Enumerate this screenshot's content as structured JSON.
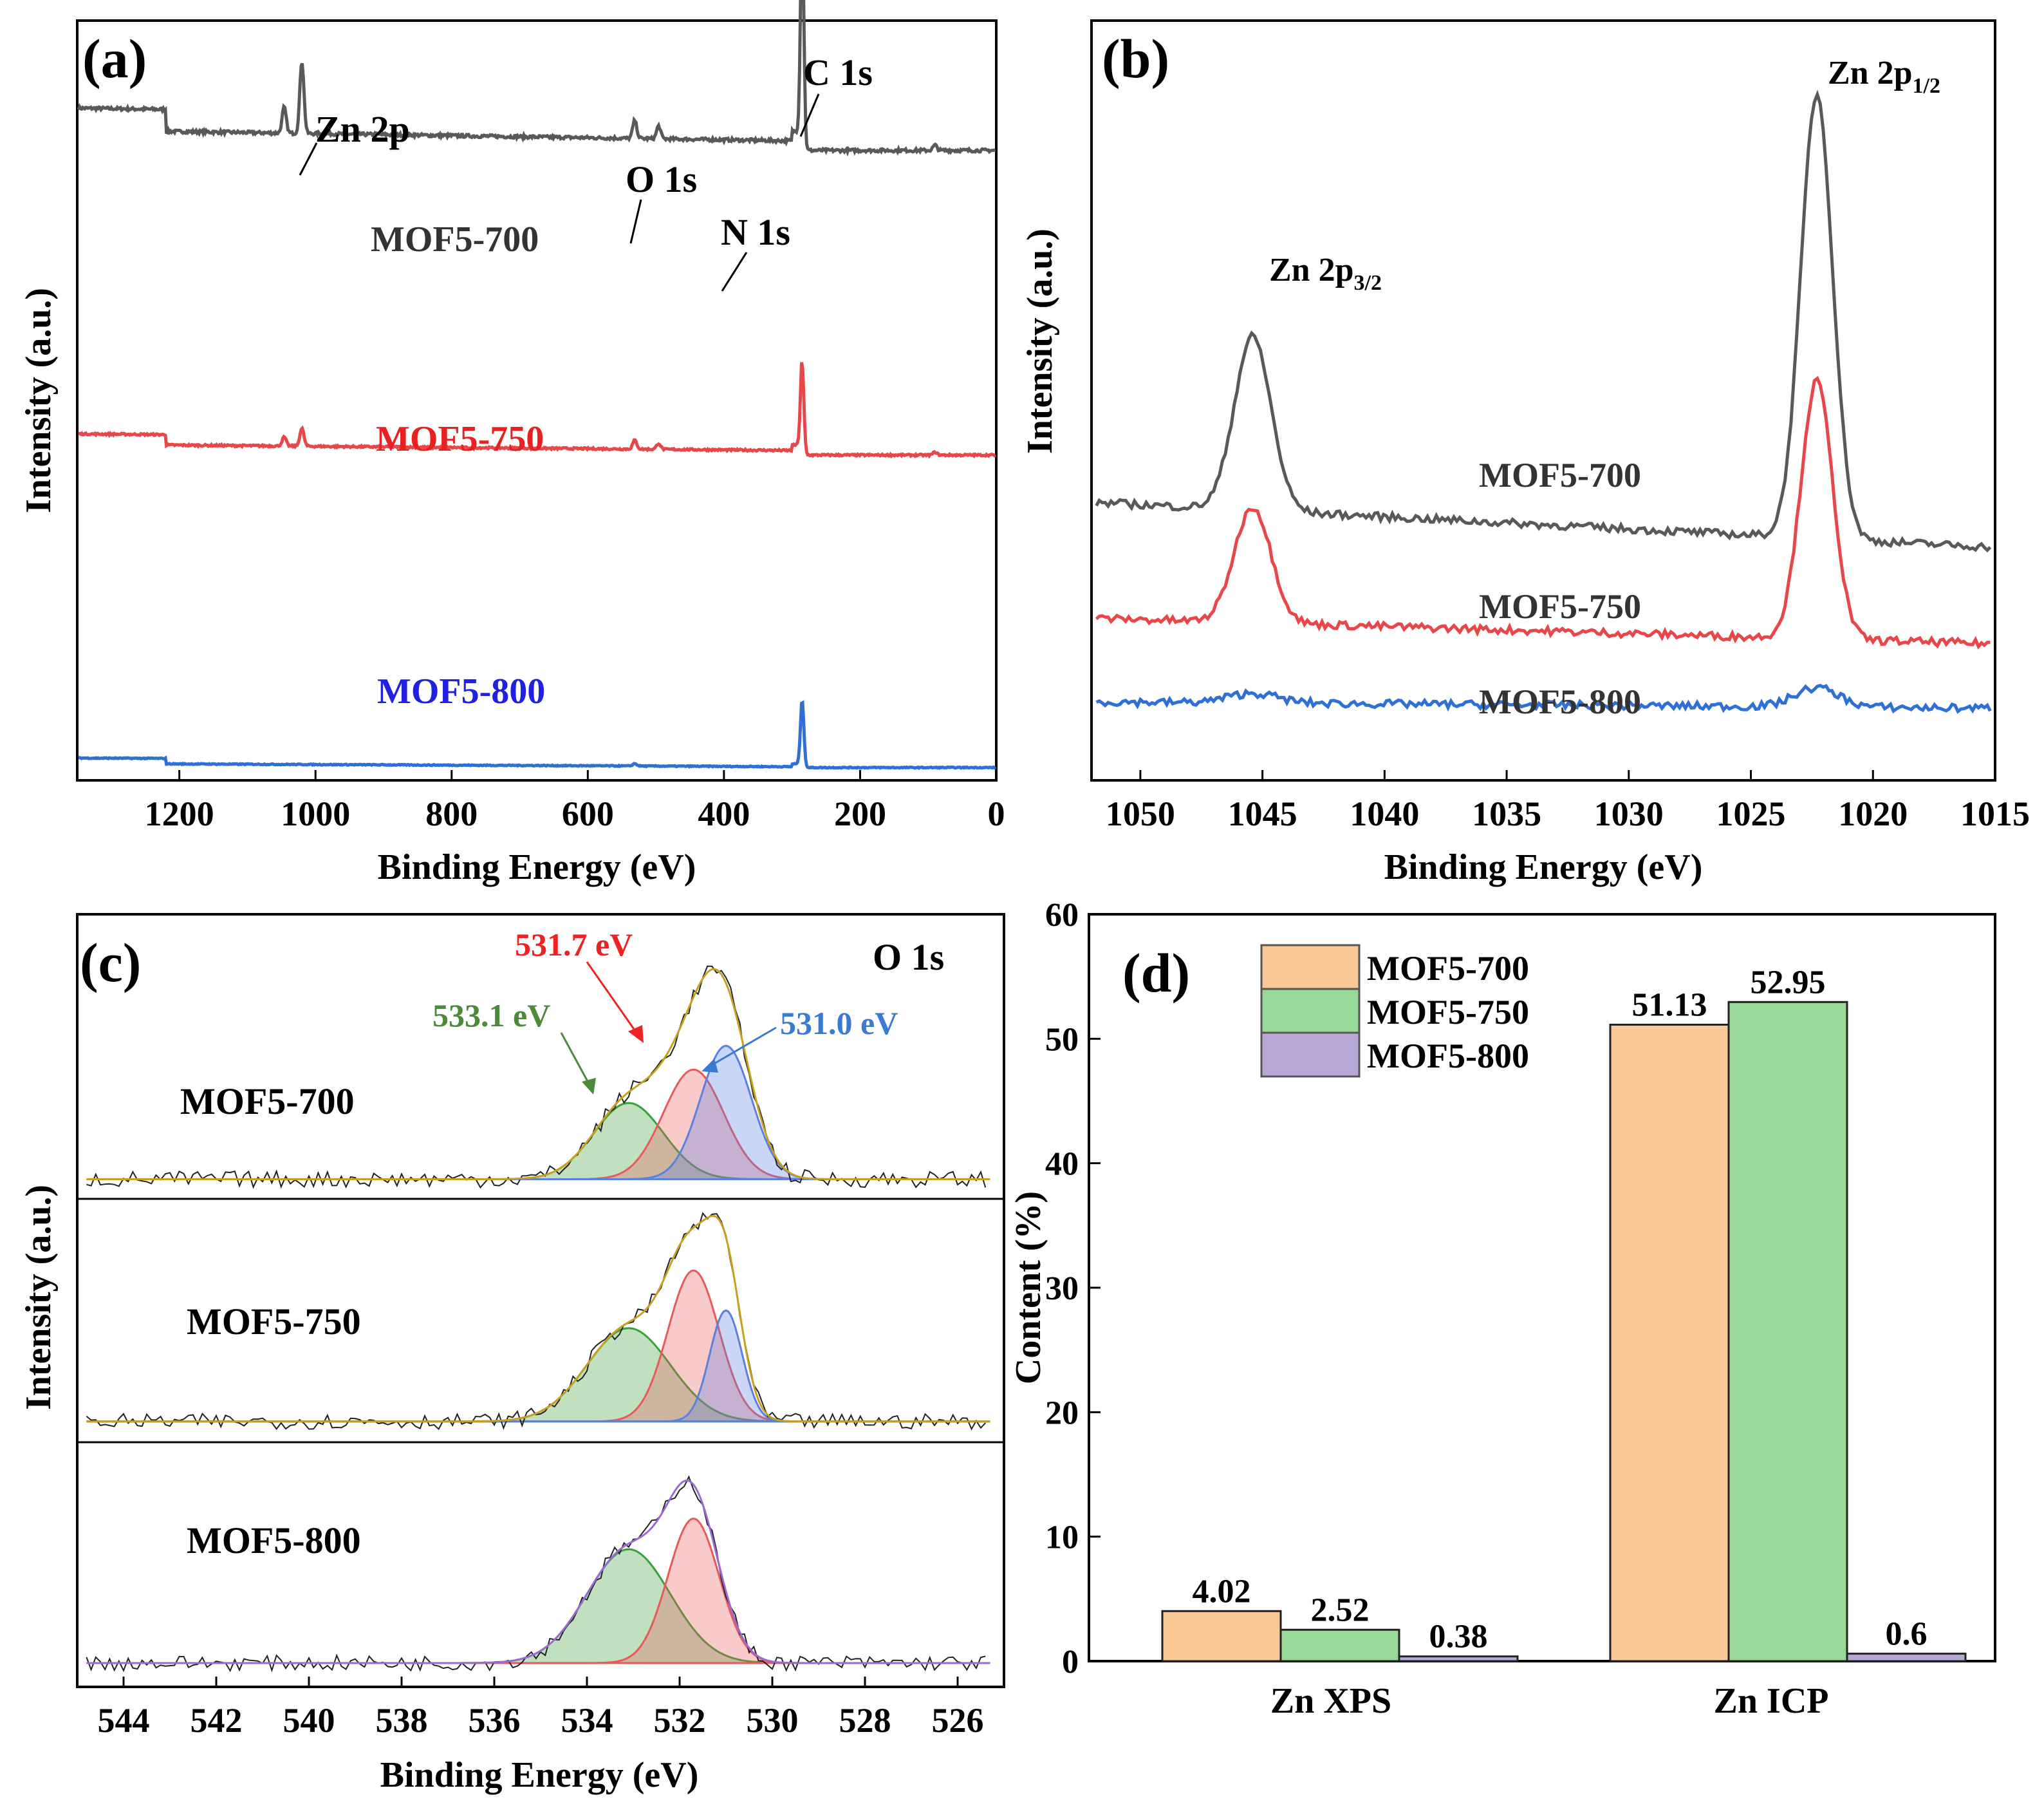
{
  "colors": {
    "mof700": "#595959",
    "mof750": "#e8474a",
    "mof800": "#2f6fd6",
    "bar700": "#f8c896",
    "bar750": "#98d898",
    "bar800": "#b8a8d8",
    "fit_green": "#3aa03a",
    "fit_red": "#e85a5a",
    "fit_blue": "#5a80e0",
    "envelope": "#c8a020",
    "ann_red": "#ee2222",
    "ann_green": "#4a8a3a",
    "ann_blue": "#3a7ad0"
  },
  "chart_data": [
    {
      "id": "a",
      "type": "line",
      "panel_label": "(a)",
      "xlabel": "Binding Energy (eV)",
      "ylabel": "Intensity (a.u.)",
      "xlim": [
        1350,
        0
      ],
      "xticks": [
        1200,
        1000,
        800,
        600,
        400,
        200,
        0
      ],
      "series": [
        {
          "name": "MOF5-700",
          "color_key": "mof700",
          "baseline": 0.79,
          "step": 0.085,
          "peaks": [
            [
              1046,
              0.1,
              3
            ],
            [
              1020,
              0.28,
              3
            ],
            [
              531,
              0.07,
              3
            ],
            [
              496,
              0.05,
              3
            ],
            [
              285,
              0.84,
              2.5
            ],
            [
              90,
              0.02,
              3
            ]
          ]
        },
        {
          "name": "MOF5-750",
          "color_key": "mof750",
          "baseline": 0.56,
          "step": 0.07,
          "peaks": [
            [
              1046,
              0.06,
              3
            ],
            [
              1020,
              0.12,
              3
            ],
            [
              531,
              0.06,
              3
            ],
            [
              496,
              0.04,
              3
            ],
            [
              285,
              0.6,
              2.5
            ],
            [
              90,
              0.02,
              3
            ]
          ]
        },
        {
          "name": "MOF5-800",
          "color_key": "mof800",
          "baseline": 0.03,
          "step": 0.07,
          "peaks": [
            [
              531,
              0.03,
              3
            ],
            [
              285,
              0.85,
              2.5
            ]
          ]
        }
      ],
      "annotations": [
        "Zn 2p",
        "O 1s",
        "N 1s",
        "C 1s"
      ]
    },
    {
      "id": "b",
      "type": "line",
      "panel_label": "(b)",
      "xlabel": "Binding Energy (eV)",
      "ylabel": "Intensity (a.u.)",
      "xlim": [
        1052,
        1015
      ],
      "xticks": [
        1050,
        1045,
        1040,
        1035,
        1030,
        1025,
        1020,
        1015
      ],
      "series": [
        {
          "name": "MOF5-700",
          "color_key": "mof700",
          "base_start": 0.37,
          "base_end": 0.3,
          "peaks": [
            [
              1045.4,
              0.27,
              0.75
            ],
            [
              1022.3,
              0.69,
              0.65
            ]
          ]
        },
        {
          "name": "MOF5-750",
          "color_key": "mof750",
          "base_start": 0.19,
          "base_end": 0.15,
          "peaks": [
            [
              1045.4,
              0.18,
              0.75
            ],
            [
              1022.3,
              0.4,
              0.65
            ]
          ]
        },
        {
          "name": "MOF5-800",
          "color_key": "mof800",
          "base_start": 0.06,
          "base_end": 0.05,
          "peaks": [
            [
              1045.4,
              0.015,
              1.0
            ],
            [
              1022.3,
              0.03,
              0.9
            ]
          ]
        }
      ],
      "peak_labels": [
        {
          "main": "Zn 2p",
          "sub": "3/2"
        },
        {
          "main": "Zn 2p",
          "sub": "1/2"
        }
      ]
    },
    {
      "id": "c",
      "type": "line",
      "panel_label": "(c)",
      "title": "O 1s",
      "xlabel": "Binding Energy (eV)",
      "ylabel": "Intensity (a.u.)",
      "xlim": [
        545,
        525
      ],
      "xticks": [
        544,
        542,
        540,
        538,
        536,
        534,
        532,
        530,
        528,
        526
      ],
      "components": [
        {
          "position_eV": 533.1,
          "label": "533.1 eV",
          "color_key": "fit_green"
        },
        {
          "position_eV": 531.7,
          "label": "531.7 eV",
          "color_key": "fit_red"
        },
        {
          "position_eV": 531.0,
          "label": "531.0 eV",
          "color_key": "fit_blue"
        }
      ],
      "subpanels": [
        {
          "name": "MOF5-700",
          "fits": [
            [
              533.1,
              0.32,
              0.75,
              "fit_green"
            ],
            [
              531.7,
              0.46,
              0.65,
              "fit_red"
            ],
            [
              531.0,
              0.56,
              0.55,
              "fit_blue"
            ]
          ]
        },
        {
          "name": "MOF5-750",
          "fits": [
            [
              533.1,
              0.42,
              0.9,
              "fit_green"
            ],
            [
              531.7,
              0.68,
              0.55,
              "fit_red"
            ],
            [
              531.0,
              0.5,
              0.35,
              "fit_blue"
            ]
          ]
        },
        {
          "name": "MOF5-800",
          "fits": [
            [
              533.1,
              0.52,
              0.9,
              "fit_green"
            ],
            [
              531.7,
              0.66,
              0.55,
              "fit_red"
            ]
          ]
        }
      ]
    },
    {
      "id": "d",
      "type": "bar",
      "panel_label": "(d)",
      "xlabel": "",
      "ylabel": "Content (%)",
      "ylim": [
        0,
        60
      ],
      "yticks": [
        0,
        10,
        20,
        30,
        40,
        50,
        60
      ],
      "categories": [
        "Zn XPS",
        "Zn ICP"
      ],
      "series": [
        {
          "name": "MOF5-700",
          "color_key": "bar700",
          "values": [
            4.02,
            51.13
          ],
          "labels": [
            "4.02",
            "51.13"
          ]
        },
        {
          "name": "MOF5-750",
          "color_key": "bar750",
          "values": [
            2.52,
            52.95
          ],
          "labels": [
            "2.52",
            "52.95"
          ]
        },
        {
          "name": "MOF5-800",
          "color_key": "bar800",
          "values": [
            0.38,
            0.6
          ],
          "labels": [
            "0.38",
            "0.6"
          ]
        }
      ]
    }
  ]
}
